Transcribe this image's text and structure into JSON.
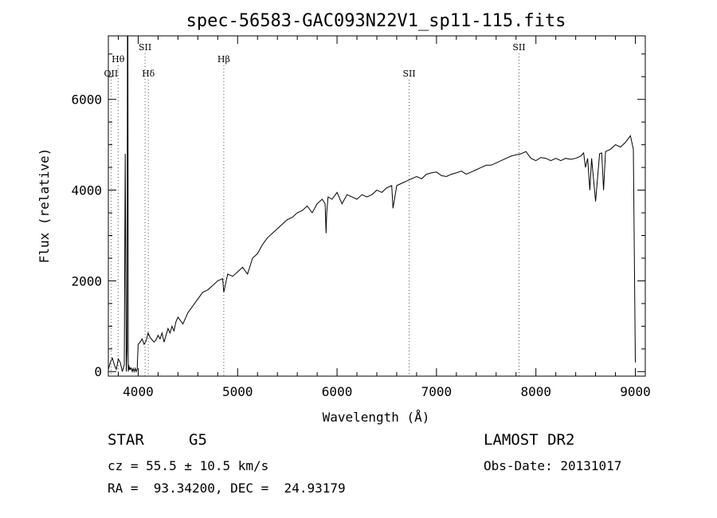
{
  "chart_data": {
    "type": "line",
    "title": "spec-56583-GAC093N22V1_sp11-115.fits",
    "xlabel": "Wavelength (Å)",
    "ylabel": "Flux (relative)",
    "xlim": [
      3700,
      9100
    ],
    "ylim": [
      -100,
      7400
    ],
    "xticks": [
      4000,
      5000,
      6000,
      7000,
      8000,
      9000
    ],
    "yticks": [
      0,
      2000,
      4000,
      6000
    ],
    "xtick_labels": [
      "4000",
      "5000",
      "6000",
      "7000",
      "8000",
      "9000"
    ],
    "ytick_labels": [
      "0",
      "2000",
      "4000",
      "6000"
    ],
    "grid": false,
    "line_color": "#000000",
    "spectral_lines": [
      {
        "label": "OII",
        "x": 3727,
        "level": 2
      },
      {
        "label": "Hθ",
        "x": 3798,
        "level": 1
      },
      {
        "label": "SII",
        "x": 4069,
        "level": 0
      },
      {
        "label": "Hδ",
        "x": 4102,
        "level": 2
      },
      {
        "label": "Hβ",
        "x": 4861,
        "level": 1
      },
      {
        "label": "SII",
        "x": 6725,
        "level": 2
      },
      {
        "label": "SII",
        "x": 7830,
        "level": 0
      }
    ],
    "series": [
      {
        "x": [
          3700,
          3720,
          3740,
          3760,
          3780,
          3800,
          3820,
          3840,
          3860,
          3870,
          3880,
          3888,
          3892,
          3896,
          3900,
          3905,
          3910,
          3915,
          3920,
          3930,
          3940,
          3950,
          3960,
          3970,
          3980,
          3990,
          4000,
          4020,
          4040,
          4060,
          4080,
          4100,
          4120,
          4140,
          4160,
          4180,
          4200,
          4220,
          4240,
          4260,
          4280,
          4300,
          4320,
          4340,
          4360,
          4380,
          4400,
          4450,
          4500,
          4550,
          4600,
          4650,
          4700,
          4750,
          4800,
          4850,
          4861,
          4900,
          4950,
          5000,
          5050,
          5100,
          5150,
          5200,
          5250,
          5300,
          5350,
          5400,
          5450,
          5500,
          5550,
          5600,
          5650,
          5700,
          5750,
          5800,
          5850,
          5880,
          5890,
          5896,
          5910,
          5950,
          6000,
          6050,
          6100,
          6150,
          6200,
          6250,
          6300,
          6350,
          6400,
          6450,
          6500,
          6550,
          6563,
          6600,
          6650,
          6700,
          6750,
          6800,
          6850,
          6900,
          6950,
          7000,
          7050,
          7100,
          7150,
          7200,
          7250,
          7300,
          7350,
          7400,
          7450,
          7500,
          7550,
          7600,
          7650,
          7700,
          7750,
          7800,
          7850,
          7900,
          7950,
          8000,
          8050,
          8100,
          8150,
          8200,
          8250,
          8300,
          8350,
          8400,
          8450,
          8480,
          8498,
          8520,
          8542,
          8560,
          8600,
          8640,
          8662,
          8680,
          8700,
          8750,
          8800,
          8850,
          8900,
          8950,
          8980,
          9000
        ],
        "values": [
          50,
          200,
          300,
          150,
          50,
          280,
          200,
          0,
          150,
          4800,
          0,
          500,
          7400,
          7400,
          0,
          150,
          40,
          100,
          50,
          80,
          0,
          70,
          0,
          70,
          0,
          60,
          600,
          650,
          720,
          600,
          680,
          850,
          750,
          700,
          650,
          700,
          800,
          720,
          850,
          650,
          800,
          950,
          850,
          1000,
          900,
          1100,
          1200,
          1050,
          1300,
          1450,
          1600,
          1750,
          1800,
          1900,
          2000,
          2050,
          1750,
          2150,
          2100,
          2200,
          2300,
          2150,
          2500,
          2600,
          2800,
          2950,
          3050,
          3150,
          3250,
          3350,
          3400,
          3500,
          3550,
          3650,
          3500,
          3700,
          3800,
          3700,
          3050,
          3500,
          3850,
          3800,
          3950,
          3700,
          3900,
          3850,
          3800,
          3900,
          3850,
          3900,
          4000,
          3950,
          4050,
          4100,
          3600,
          4100,
          4150,
          4200,
          4250,
          4300,
          4250,
          4350,
          4380,
          4400,
          4320,
          4300,
          4350,
          4380,
          4420,
          4350,
          4400,
          4450,
          4500,
          4550,
          4550,
          4600,
          4650,
          4700,
          4750,
          4780,
          4800,
          4850,
          4700,
          4650,
          4720,
          4700,
          4650,
          4700,
          4650,
          4700,
          4680,
          4700,
          4750,
          4820,
          4500,
          4700,
          4000,
          4700,
          3750,
          4800,
          4820,
          4000,
          4850,
          4900,
          5000,
          4950,
          5050,
          5200,
          4900,
          200
        ]
      }
    ]
  },
  "info": {
    "object_type": "STAR",
    "subclass": "G5",
    "survey": "LAMOST DR2",
    "redshift": "cz = 55.5 ± 10.5 km/s",
    "obs_date": "Obs-Date: 20131017",
    "coords": "RA =  93.34200, DEC =  24.93179"
  }
}
